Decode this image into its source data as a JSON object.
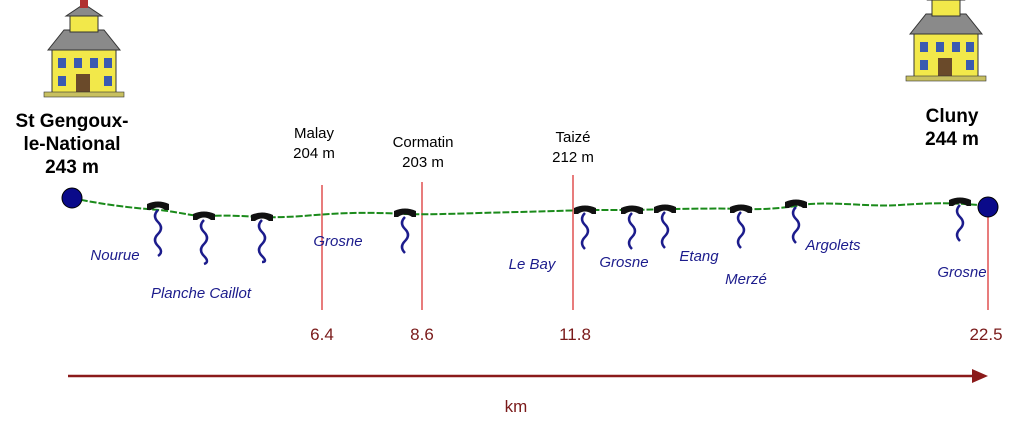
{
  "start": {
    "name_line1": "St Gengoux-",
    "name_line2": "le-National",
    "altitude": "243 m",
    "icon": "house-icon"
  },
  "end": {
    "name": "Cluny",
    "altitude": "244 m",
    "icon": "house-icon"
  },
  "towns": [
    {
      "name": "Malay",
      "altitude": "204 m",
      "km": "6.4"
    },
    {
      "name": "Cormatin",
      "altitude": "203 m",
      "km": "8.6"
    },
    {
      "name": "Taizé",
      "altitude": "212 m",
      "km": "11.8"
    }
  ],
  "end_km": "22.5",
  "rivers": [
    "Nourue",
    "Planche Caillot",
    "Grosne",
    "Le Bay",
    "Grosne",
    "Etang",
    "Merzé",
    "Argolets",
    "Grosne"
  ],
  "axis": {
    "unit": "km",
    "color": "#8b1a1a"
  },
  "colors": {
    "route": "#1a8a1a",
    "river": "#1c1c8c",
    "marker": "#e05050",
    "endpoint": "#0a0a8a"
  }
}
